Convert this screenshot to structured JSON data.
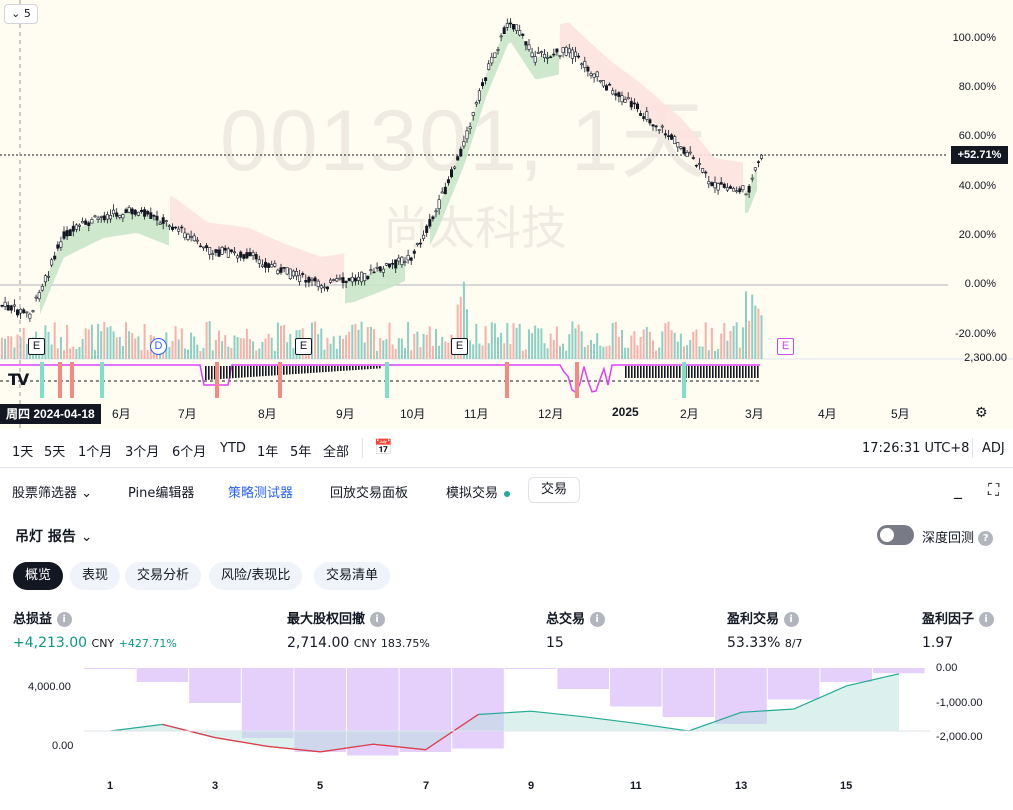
{
  "chart": {
    "interval": "5",
    "watermark_symbol": "001301, 1天",
    "watermark_name": "尚太科技",
    "price_tag": "+52.71%",
    "y_axis": [
      "100.00%",
      "80.00%",
      "60.00%",
      "40.00%",
      "20.00%",
      "0.00%",
      "-20.00%"
    ],
    "y_axis_cut": "2,300.00",
    "x_axis": [
      "6月",
      "7月",
      "8月",
      "9月",
      "10月",
      "11月",
      "12月",
      "2025",
      "2月",
      "3月",
      "4月",
      "5月"
    ],
    "date_badge": "周四 2024-04-18",
    "events": [
      "E",
      "D",
      "E",
      "E",
      "E"
    ],
    "logo": "TV"
  },
  "chart_data": {
    "type": "line",
    "ylabel": "",
    "ylim": [
      -20,
      110
    ],
    "x": [
      "2024-04-18",
      "2024-05-01",
      "2024-05-15",
      "2024-06-01",
      "2024-06-15",
      "2024-07-01",
      "2024-07-15",
      "2024-08-01",
      "2024-08-15",
      "2024-09-01",
      "2024-09-15",
      "2024-10-01",
      "2024-10-10",
      "2024-10-20",
      "2024-11-01",
      "2024-11-10",
      "2024-11-20",
      "2024-12-01",
      "2024-12-15",
      "2025-01-01",
      "2025-01-15",
      "2025-02-01",
      "2025-02-15",
      "2025-03-01",
      "2025-03-07"
    ],
    "series": [
      {
        "values": [
          -8,
          -12,
          20,
          28,
          30,
          24,
          14,
          12,
          6,
          0,
          2,
          8,
          12,
          30,
          58,
          85,
          108,
          92,
          95,
          80,
          70,
          56,
          40,
          38,
          52.71
        ]
      }
    ]
  },
  "range_bar": {
    "ranges": [
      "1天",
      "5天",
      "1个月",
      "3个月",
      "6个月",
      "YTD",
      "1年",
      "5年",
      "全部"
    ],
    "time": "17:26:31 UTC+8",
    "adj": "ADJ"
  },
  "panel_tabs": {
    "items": [
      "股票筛选器",
      "Pine编辑器",
      "策略测试器",
      "回放交易面板",
      "模拟交易"
    ],
    "trade": "交易"
  },
  "report": {
    "title": "吊灯 报告",
    "deep_backtest": "深度回测",
    "sub_tabs": [
      "概览",
      "表现",
      "交易分析",
      "风险/表现比",
      "交易清单"
    ]
  },
  "metrics": {
    "net_profit": {
      "label": "总损益",
      "value": "+4,213.00",
      "unit": "CNY",
      "pct": "+427.71%"
    },
    "max_dd": {
      "label": "最大股权回撤",
      "value": "2,714.00",
      "unit": "CNY",
      "pct": "183.75%"
    },
    "total_trades": {
      "label": "总交易",
      "value": "15"
    },
    "win_trades": {
      "label": "盈利交易",
      "value": "53.33%",
      "sub": "8/7"
    },
    "profit_factor": {
      "label": "盈利因子",
      "value": "1.97"
    }
  },
  "equity_chart": {
    "left_axis": [
      "4,000.00",
      "0.00"
    ],
    "right_axis": [
      "0.00",
      "-1,000.00",
      "-2,000.00"
    ],
    "x_ticks": [
      "1",
      "3",
      "5",
      "7",
      "9",
      "11",
      "13",
      "15"
    ],
    "equity": [
      0,
      600,
      -600,
      -1400,
      -1900,
      -1200,
      -1700,
      1500,
      1800,
      1300,
      700,
      0,
      1700,
      2000,
      4100,
      5200
    ],
    "drawdown": [
      0,
      -400,
      -1000,
      -2000,
      -2400,
      -2500,
      -2400,
      -2300,
      -20,
      -600,
      -1100,
      -1400,
      -1600,
      -900,
      -400,
      -150
    ]
  },
  "colors": {
    "up": "#089981",
    "down": "#f23645",
    "cloud_up": "#c8e6c9",
    "cloud_down": "#fde2e0",
    "accent": "#2962ff",
    "drawdown": "#e1c8fb"
  }
}
